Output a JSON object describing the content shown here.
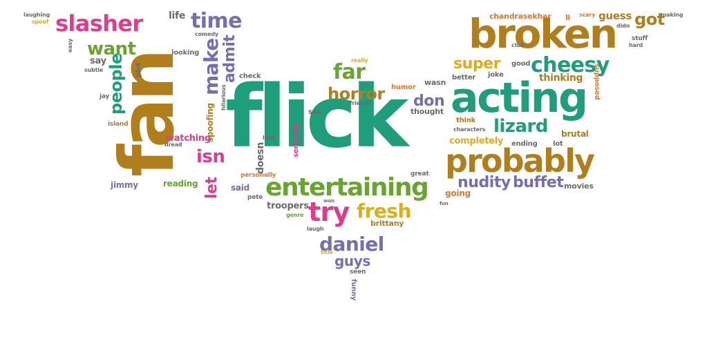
{
  "colors": {
    "brown": "#B07F1C",
    "green": "#1E9E7A",
    "pink": "#E23B8E",
    "purple": "#7A6CB0",
    "lime": "#67A52F",
    "orange": "#E5772B",
    "yellow": "#DDAE1A",
    "gray": "#6B6B6B"
  },
  "words": {
    "flick": "flick",
    "fan": "fan",
    "broken": "broken",
    "acting": "acting",
    "probably": "probably",
    "entertaining": "entertaining",
    "cheesy": "cheesy",
    "slasher": "slasher",
    "time": "time",
    "want": "want",
    "make": "make",
    "admit": "admit",
    "people": "people",
    "far": "far",
    "horror": "horror",
    "lizard": "lizard",
    "super": "super",
    "got": "got",
    "guess": "guess",
    "try": "try",
    "fresh": "fresh",
    "daniel": "daniel",
    "guys": "guys",
    "nudity": "nudity",
    "buffet": "buffet",
    "isn": "isn",
    "let": "let",
    "don": "don",
    "spoofing": "spoofing",
    "watching": "watching",
    "reading": "reading",
    "jimmy": "jimmy",
    "said": "said",
    "doesn": "doesn",
    "troopers": "troopers",
    "brittany": "brittany",
    "going": "going",
    "completely": "completely",
    "thinking": "thinking",
    "brutal": "brutal",
    "ending": "ending",
    "lot": "lot",
    "movies": "movies",
    "chandrasekhar": "chandrasekhar",
    "ll": "ll",
    "scary": "scary",
    "didn": "didn",
    "making": "making",
    "stuff": "stuff",
    "hard": "hard",
    "club": "club",
    "good": "good",
    "joke": "joke",
    "better": "better",
    "supposed": "supposed",
    "wasn": "wasn",
    "humor": "humor",
    "thought": "thought",
    "friends": "friends",
    "think": "think",
    "characters": "characters",
    "check": "check",
    "really": "really",
    "sex": "sex",
    "seriously": "seriously",
    "look": "look",
    "personally": "personally",
    "pete": "pete",
    "great": "great",
    "won": "won",
    "fun": "fun",
    "genre": "genre",
    "laugh": "laugh",
    "title": "title",
    "seen": "seen",
    "funny": "funny",
    "life": "life",
    "comedy": "comedy",
    "looking": "looking",
    "hilarious": "hilarious",
    "plot": "plot",
    "say": "say",
    "subtle": "subtle",
    "easy": "easy",
    "jay": "jay",
    "island": "island",
    "dread": "dread",
    "laughing": "laughing",
    "spoof": "spoof"
  }
}
